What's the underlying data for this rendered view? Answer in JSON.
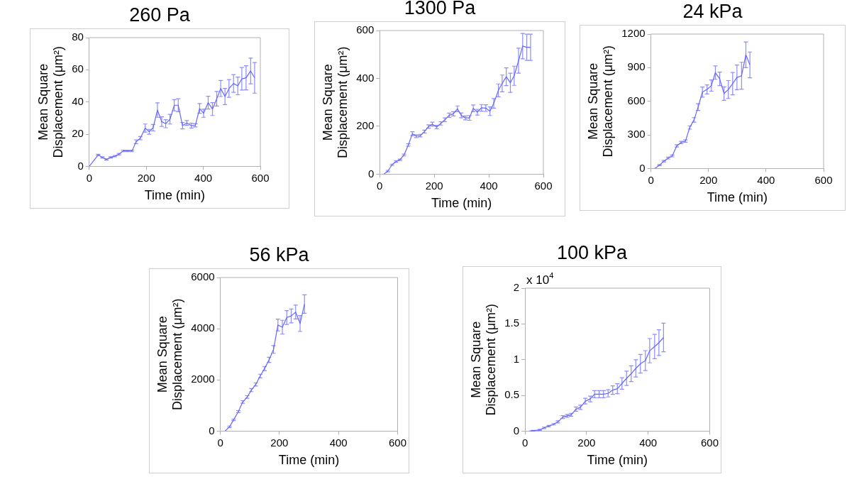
{
  "chart_data": [
    {
      "type": "line",
      "title": "260 Pa",
      "xlabel": "Time (min)",
      "ylabel": "Mean Square Displacement (μm²)",
      "xlim": [
        0,
        600
      ],
      "xticks": [
        0,
        200,
        400,
        600
      ],
      "ylim": [
        0,
        80
      ],
      "yticks": [
        0,
        20,
        40,
        60,
        80
      ],
      "grid": false,
      "legend": false,
      "marker": "none",
      "line_style": "solid",
      "x": [
        0,
        31,
        46,
        60,
        75,
        90,
        104,
        119,
        134,
        150,
        164,
        179,
        196,
        210,
        224,
        239,
        254,
        268,
        283,
        298,
        312,
        327,
        342,
        358,
        372,
        387,
        401,
        417,
        432,
        447,
        461,
        476,
        490,
        506,
        521,
        535,
        550,
        566,
        580
      ],
      "series": [
        {
          "color": "#6666ff",
          "values": [
            0,
            7.1,
            5.6,
            4.3,
            5.6,
            6.3,
            7.6,
            9.6,
            9.6,
            9.6,
            15.3,
            17.5,
            23.8,
            21.5,
            24,
            35,
            27.8,
            26.5,
            29.3,
            38,
            38,
            25.3,
            27,
            25.3,
            25.5,
            36,
            33,
            39.6,
            35.6,
            42,
            48.4,
            43.4,
            48.4,
            51.5,
            50,
            54.4,
            55,
            59.3,
            55
          ],
          "errors": [
            null,
            0.4,
            0.4,
            0.4,
            0.4,
            0.4,
            0.5,
            0.5,
            0.5,
            0.5,
            1.2,
            1,
            2.5,
            1.5,
            2,
            4.5,
            3,
            2.5,
            3,
            3.5,
            4,
            2,
            1.5,
            1.5,
            1,
            3,
            2.5,
            4,
            4,
            4.5,
            5,
            5,
            5.5,
            5.5,
            5.5,
            7,
            7.5,
            8,
            9.5
          ]
        }
      ]
    },
    {
      "type": "line",
      "title": "1300 Pa",
      "xlabel": "Time (min)",
      "ylabel": "Mean Square Displacement (μm²)",
      "xlim": [
        0,
        600
      ],
      "xticks": [
        0,
        200,
        400,
        600
      ],
      "ylim": [
        0,
        600
      ],
      "yticks": [
        0,
        200,
        400,
        600
      ],
      "grid": false,
      "legend": false,
      "marker": "none",
      "line_style": "solid",
      "x": [
        15,
        30,
        45,
        60,
        74,
        89,
        105,
        120,
        134,
        149,
        164,
        179,
        193,
        209,
        224,
        239,
        255,
        270,
        285,
        299,
        314,
        329,
        343,
        358,
        373,
        389,
        404,
        418,
        435,
        449,
        464,
        479,
        493,
        509,
        524,
        539,
        553
      ],
      "series": [
        {
          "color": "#6666ff",
          "values": [
            0,
            13,
            39,
            53,
            60,
            80,
            122,
            169,
            159,
            161,
            178,
            199,
            209,
            197,
            212,
            227,
            246,
            252,
            273,
            246,
            235,
            235,
            275,
            259,
            277,
            276,
            263,
            296,
            350,
            379,
            407,
            382,
            411,
            474,
            535,
            530,
            530
          ],
          "errors": [
            null,
            3,
            3,
            3,
            3,
            4,
            5,
            8,
            6,
            5,
            6,
            7,
            8,
            7,
            7,
            8,
            9,
            9,
            12,
            10,
            8,
            10,
            14,
            12,
            14,
            14,
            18,
            20,
            27,
            35,
            37,
            40,
            40,
            52,
            53,
            55,
            55
          ]
        }
      ]
    },
    {
      "type": "line",
      "title": "24 kPa",
      "xlabel": "Time (min)",
      "ylabel": "Mean Square Displacement (μm²)",
      "xlim": [
        0,
        600
      ],
      "xticks": [
        0,
        200,
        400,
        600
      ],
      "ylim": [
        0,
        1200
      ],
      "yticks": [
        0,
        300,
        600,
        900,
        1200
      ],
      "grid": false,
      "legend": false,
      "marker": "none",
      "line_style": "solid",
      "x": [
        13,
        30,
        45,
        60,
        74,
        90,
        105,
        120,
        135,
        150,
        164,
        179,
        195,
        210,
        224,
        239,
        254,
        269,
        284,
        299,
        315,
        330,
        344
      ],
      "series": [
        {
          "color": "#6666ff",
          "values": [
            0,
            30,
            65,
            93,
            112,
            202,
            232,
            245,
            366,
            434,
            548,
            682,
            706,
            740,
            856,
            800,
            669,
            705,
            757,
            813,
            828,
            1015,
            925
          ],
          "errors": [
            null,
            5,
            6,
            8,
            8,
            10,
            10,
            10,
            15,
            20,
            30,
            45,
            40,
            50,
            60,
            60,
            60,
            80,
            100,
            110,
            120,
            115,
            115
          ]
        }
      ]
    },
    {
      "type": "line",
      "title": "56 kPa",
      "xlabel": "Time (min)",
      "ylabel": "Mean Square Displacement (μm²)",
      "xlim": [
        0,
        600
      ],
      "xticks": [
        0,
        200,
        400,
        600
      ],
      "ylim": [
        0,
        6000
      ],
      "yticks": [
        0,
        2000,
        4000,
        6000
      ],
      "grid": false,
      "legend": false,
      "marker": "none",
      "line_style": "solid",
      "x": [
        16,
        31,
        45,
        61,
        76,
        91,
        105,
        120,
        135,
        150,
        165,
        180,
        195,
        210,
        225,
        240,
        255,
        270,
        285
      ],
      "series": [
        {
          "color": "#6666ff",
          "values": [
            0,
            168,
            438,
            758,
            1139,
            1333,
            1603,
            1823,
            2152,
            2447,
            2785,
            3190,
            4143,
            4059,
            4439,
            4498,
            4650,
            4203,
            4962
          ],
          "errors": [
            null,
            30,
            30,
            40,
            50,
            50,
            60,
            60,
            70,
            80,
            100,
            150,
            230,
            270,
            270,
            270,
            270,
            310,
            360
          ]
        }
      ]
    },
    {
      "type": "line",
      "title": "100 kPa",
      "xlabel": "Time (min)",
      "ylabel": "Mean Square Displacement (μm²)",
      "annotations": [
        "x 10$^{4}$"
      ],
      "xlim": [
        0,
        600
      ],
      "xticks": [
        0,
        200,
        400,
        600
      ],
      "ylim": [
        0,
        2
      ],
      "yticks": [
        0,
        0.5,
        1,
        1.5,
        2
      ],
      "grid": false,
      "legend": false,
      "marker": "none",
      "line_style": "solid",
      "x": [
        13,
        26,
        48,
        62,
        77,
        93,
        107,
        123,
        137,
        150,
        166,
        180,
        196,
        212,
        226,
        241,
        255,
        270,
        285,
        300,
        315,
        330,
        345,
        360,
        375,
        391,
        405,
        421,
        435,
        450
      ],
      "series": [
        {
          "color": "#6666ff",
          "values": [
            0,
            0.006,
            0.017,
            0.046,
            0.07,
            0.096,
            0.13,
            0.197,
            0.214,
            0.229,
            0.307,
            0.333,
            0.42,
            0.45,
            0.516,
            0.516,
            0.516,
            0.528,
            0.574,
            0.594,
            0.667,
            0.739,
            0.803,
            0.878,
            0.942,
            0.986,
            1.125,
            1.183,
            1.238,
            1.31
          ],
          "errors": [
            null,
            0.005,
            0.008,
            0.01,
            0.01,
            0.01,
            0.015,
            0.02,
            0.02,
            0.02,
            0.03,
            0.03,
            0.04,
            0.04,
            0.05,
            0.05,
            0.05,
            0.05,
            0.06,
            0.07,
            0.08,
            0.1,
            0.11,
            0.12,
            0.13,
            0.14,
            0.17,
            0.17,
            0.18,
            0.2
          ]
        }
      ]
    }
  ]
}
